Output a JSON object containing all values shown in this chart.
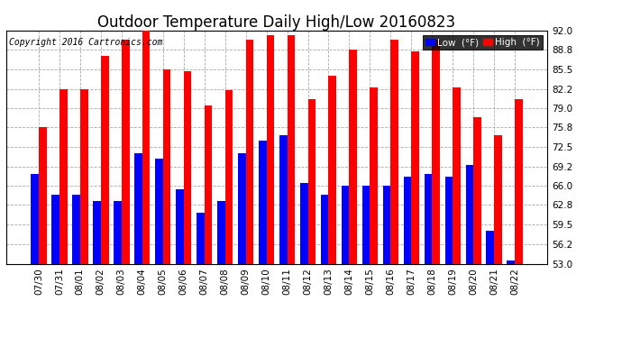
{
  "title": "Outdoor Temperature Daily High/Low 20160823",
  "copyright": "Copyright 2016 Cartronics.com",
  "legend_low": "Low  (°F)",
  "legend_high": "High  (°F)",
  "ylabel_right_ticks": [
    53.0,
    56.2,
    59.5,
    62.8,
    66.0,
    69.2,
    72.5,
    75.8,
    79.0,
    82.2,
    85.5,
    88.8,
    92.0
  ],
  "dates": [
    "07/30",
    "07/31",
    "08/01",
    "08/02",
    "08/03",
    "08/04",
    "08/05",
    "08/06",
    "08/07",
    "08/08",
    "08/09",
    "08/10",
    "08/11",
    "08/12",
    "08/13",
    "08/14",
    "08/15",
    "08/16",
    "08/17",
    "08/18",
    "08/19",
    "08/20",
    "08/21",
    "08/22"
  ],
  "high": [
    75.8,
    82.2,
    82.2,
    87.8,
    90.5,
    92.0,
    85.5,
    85.2,
    79.5,
    82.0,
    90.5,
    91.2,
    91.2,
    80.5,
    84.5,
    88.8,
    82.5,
    90.5,
    88.5,
    90.5,
    82.5,
    77.5,
    74.5,
    80.5
  ],
  "low": [
    68.0,
    64.5,
    64.5,
    63.5,
    63.5,
    71.5,
    70.5,
    65.5,
    61.5,
    63.5,
    71.5,
    73.5,
    74.5,
    66.5,
    64.5,
    66.0,
    66.0,
    66.0,
    67.5,
    68.0,
    67.5,
    69.5,
    58.5,
    53.5
  ],
  "bar_width": 0.38,
  "color_high": "#ff0000",
  "color_low": "#0000ff",
  "background_color": "#ffffff",
  "grid_color": "#aaaaaa",
  "ymin": 53.0,
  "ymax": 92.0,
  "title_fontsize": 12,
  "copyright_fontsize": 7,
  "tick_fontsize": 7.5
}
